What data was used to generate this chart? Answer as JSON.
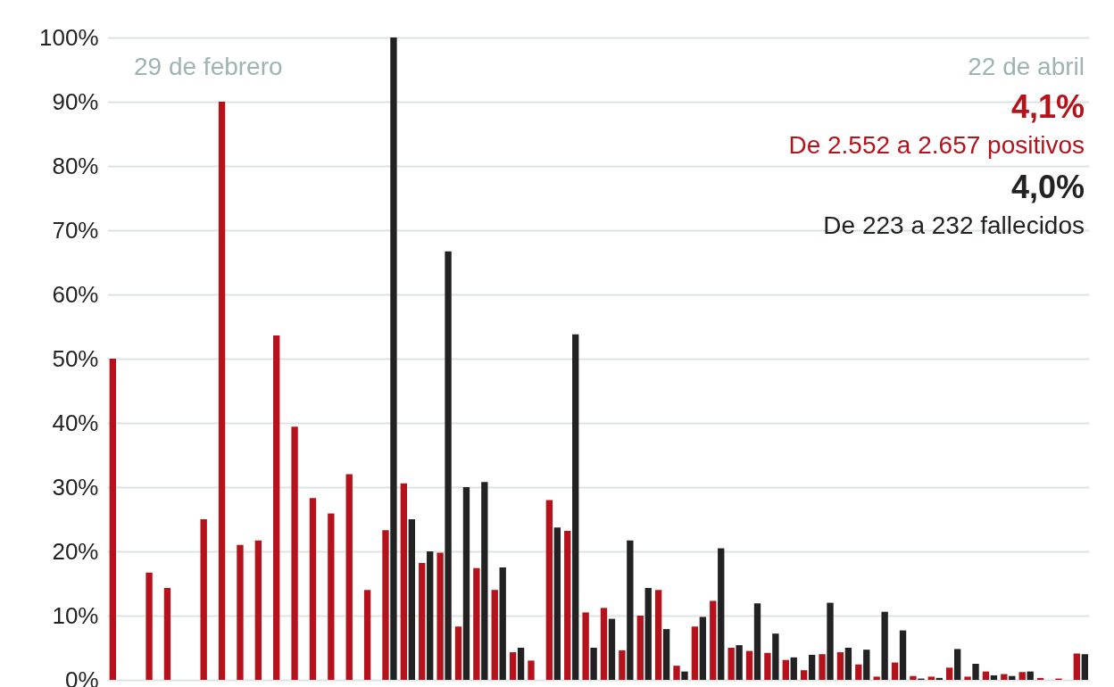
{
  "chart_data": {
    "type": "bar",
    "categories": [
      null,
      null,
      null,
      null,
      null,
      null,
      null,
      null,
      null,
      null,
      null,
      null,
      null,
      null,
      null,
      null,
      null,
      null,
      null,
      null,
      null,
      null,
      null,
      null,
      null,
      null,
      null,
      null,
      null,
      null,
      null,
      null,
      null,
      null,
      null,
      null,
      null,
      null,
      null,
      null,
      null,
      null,
      null,
      null,
      null,
      null,
      null,
      null,
      null,
      null,
      null,
      null,
      null,
      null
    ],
    "series": [
      {
        "color": "#b5121b",
        "values": [
          50,
          null,
          16.7,
          14.3,
          null,
          25,
          90,
          21,
          21.7,
          53.6,
          39.4,
          28.3,
          25.9,
          32,
          14,
          23.3,
          30.6,
          18.2,
          19.8,
          8.3,
          17.4,
          14,
          4.3,
          3,
          28,
          23.2,
          10.5,
          11.2,
          4.6,
          10,
          14,
          2.2,
          8.3,
          12.3,
          5,
          4.5,
          4.2,
          3.1,
          1.5,
          4,
          4.3,
          2.4,
          0.5,
          2.7,
          0.6,
          0.5,
          1.9,
          0.5,
          1.3,
          0.9,
          1.2,
          0.3,
          0.2,
          4.1
        ]
      },
      {
        "color": "#222222",
        "values": [
          null,
          null,
          null,
          null,
          null,
          null,
          null,
          null,
          null,
          null,
          null,
          null,
          null,
          null,
          null,
          100,
          25,
          20,
          66.7,
          30,
          30.8,
          17.5,
          5,
          null,
          23.7,
          53.8,
          5,
          9.5,
          21.7,
          14.3,
          7.9,
          1.3,
          9.8,
          20.5,
          5.4,
          11.9,
          7.2,
          3.5,
          3.9,
          12,
          5,
          4.7,
          10.6,
          7.7,
          0.2,
          0.3,
          4.8,
          2.5,
          0.7,
          0.6,
          1.3,
          null,
          null,
          4
        ]
      }
    ],
    "ylim": [
      0,
      100
    ],
    "yticks": [
      {
        "value": 0,
        "label": "0%"
      },
      {
        "value": 10,
        "label": "10%"
      },
      {
        "value": 20,
        "label": "20%"
      },
      {
        "value": 30,
        "label": "30%"
      },
      {
        "value": 40,
        "label": "40%"
      },
      {
        "value": 50,
        "label": "50%"
      },
      {
        "value": 60,
        "label": "60%"
      },
      {
        "value": 70,
        "label": "70%"
      },
      {
        "value": 80,
        "label": "80%"
      },
      {
        "value": 90,
        "label": "90%"
      },
      {
        "value": 100,
        "label": "100%"
      }
    ],
    "grid": "y",
    "legend": false,
    "annotations": [
      "29 de febrero",
      "22 de abril",
      "4,1%",
      "De  2.552 a 2.657 positivos",
      "4,0%",
      "De 223 a 232 fallecidos"
    ]
  }
}
